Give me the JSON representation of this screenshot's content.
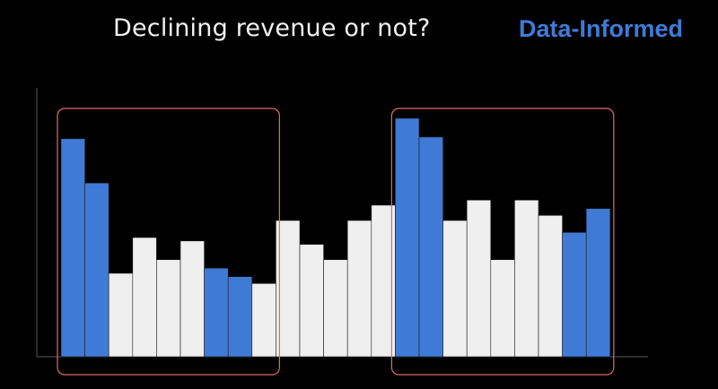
{
  "slide": {
    "title": "Declining revenue or not?",
    "brand": "Data-Informed"
  },
  "colors": {
    "background": "#000000",
    "highlight": "#3f7bd6",
    "normal": "#efefef",
    "frame": "#e06a6a",
    "axis": "#5a5a5a"
  },
  "chart_data": {
    "type": "bar",
    "title": "",
    "xlabel": "",
    "ylabel": "",
    "grid": false,
    "ylim": [
      0,
      140
    ],
    "values": [
      128,
      102,
      49,
      70,
      57,
      68,
      52,
      47,
      43,
      80,
      66,
      57,
      80,
      89,
      140,
      129,
      80,
      92,
      57,
      92,
      83,
      73,
      87
    ],
    "highlighted": [
      true,
      true,
      false,
      false,
      false,
      false,
      true,
      true,
      false,
      false,
      false,
      false,
      false,
      false,
      true,
      true,
      false,
      false,
      false,
      false,
      false,
      true,
      true
    ],
    "groups": [
      {
        "first_bar": 0,
        "last_bar": 8
      },
      {
        "first_bar": 14,
        "last_bar": 22
      }
    ]
  }
}
